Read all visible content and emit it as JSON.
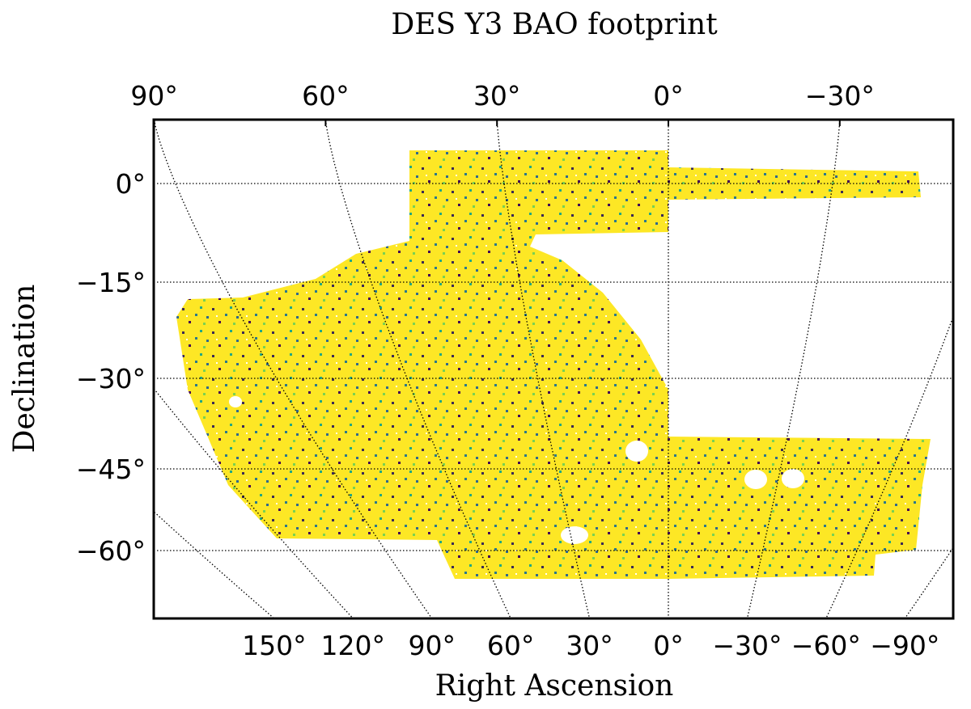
{
  "chart_data": {
    "type": "map",
    "title": "DES Y3 BAO footprint",
    "xlabel": "Right Ascension",
    "ylabel": "Declination",
    "top_xticks": [
      {
        "value": 90,
        "label": "90°"
      },
      {
        "value": 60,
        "label": "60°"
      },
      {
        "value": 30,
        "label": "30°"
      },
      {
        "value": 0,
        "label": "0°"
      },
      {
        "value": -30,
        "label": "−30°"
      }
    ],
    "xticks": [
      {
        "value": 150,
        "label": "150°"
      },
      {
        "value": 120,
        "label": "120°"
      },
      {
        "value": 90,
        "label": "90°"
      },
      {
        "value": 60,
        "label": "60°"
      },
      {
        "value": 30,
        "label": "30°"
      },
      {
        "value": 0,
        "label": "0°"
      },
      {
        "value": -30,
        "label": "−30°"
      },
      {
        "value": -60,
        "label": "−60°"
      },
      {
        "value": -90,
        "label": "−90°"
      }
    ],
    "yticks": [
      {
        "value": 0,
        "label": "0°"
      },
      {
        "value": -15,
        "label": "−15°"
      },
      {
        "value": -30,
        "label": "−30°"
      },
      {
        "value": -45,
        "label": "−45°"
      },
      {
        "value": -60,
        "label": "−60°"
      }
    ],
    "grid": true
  }
}
